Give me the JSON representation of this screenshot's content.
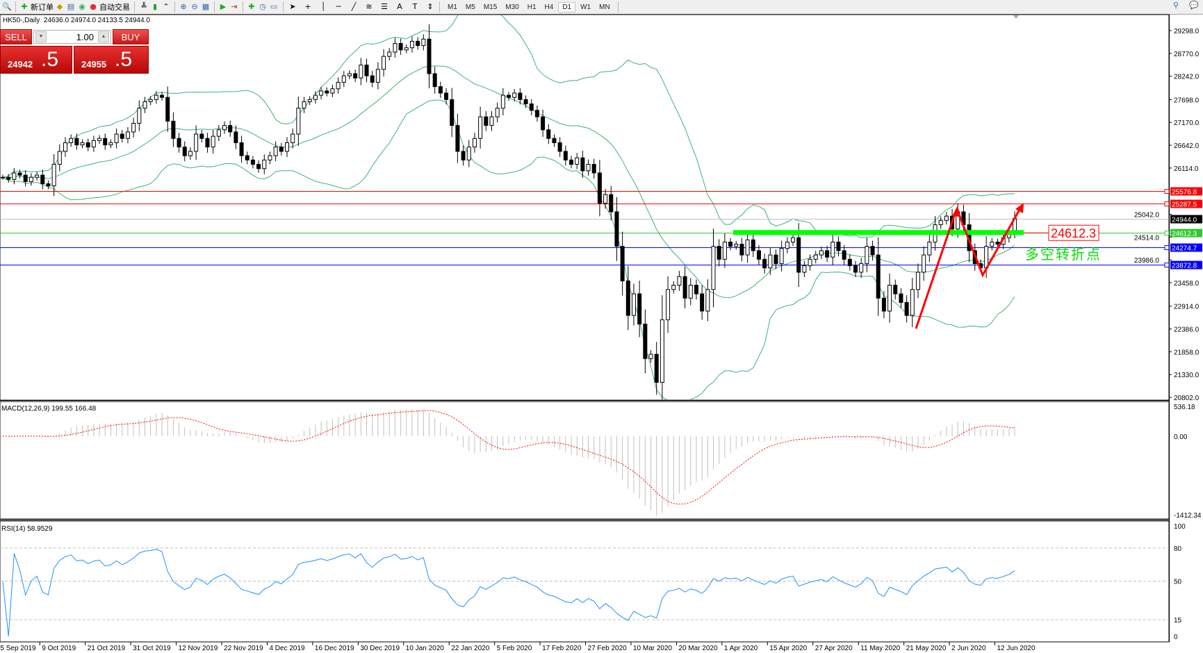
{
  "toolbar": {
    "new_order": "新订单",
    "auto_trading": "自动交易",
    "timeframes": [
      "M1",
      "M5",
      "M15",
      "M30",
      "H1",
      "H4",
      "D1",
      "W1",
      "MN"
    ],
    "active_timeframe": "D1",
    "icons": [
      "new-chart-icon",
      "zoom-icon",
      "new-order-icon",
      "metaeditor-icon",
      "navigator-icon",
      "signals-icon",
      "auto-trading-icon",
      "bar-chart-icon",
      "candlestick-icon",
      "line-chart-icon",
      "zoom-in-icon",
      "zoom-out-icon",
      "tile-windows-icon",
      "autoscroll-icon",
      "chart-shift-icon",
      "indicators-icon",
      "periods-icon",
      "templates-icon",
      "cursor-icon",
      "crosshair-icon",
      "vertical-line-icon",
      "horizontal-line-icon",
      "trendline-icon",
      "fibonacci-icon",
      "fibo-channel-icon",
      "text-icon",
      "text-label-icon",
      "arrows-icon",
      "search-icon",
      "chat-icon"
    ]
  },
  "chart": {
    "symbol_title": "HK50-,Daily",
    "ohlc": {
      "open": "24636.0",
      "high": "24974.0",
      "low": "24133.5",
      "close": "24944.0"
    },
    "price_range": [
      20802,
      29298
    ],
    "closes": [
      25900,
      25850,
      26000,
      25950,
      25800,
      25900,
      25950,
      25750,
      25700,
      26200,
      26500,
      26700,
      26800,
      26650,
      26700,
      26600,
      26750,
      26800,
      26650,
      26700,
      26900,
      26800,
      26950,
      27150,
      27500,
      27650,
      27700,
      27800,
      27750,
      27200,
      26800,
      26600,
      26400,
      26500,
      26900,
      26800,
      26600,
      26850,
      27000,
      27100,
      26950,
      26700,
      26400,
      26300,
      26200,
      26100,
      26300,
      26400,
      26600,
      26500,
      26700,
      26900,
      27500,
      27650,
      27700,
      27800,
      27900,
      27850,
      27950,
      28100,
      28250,
      28300,
      28200,
      28500,
      28250,
      28100,
      28400,
      28700,
      28800,
      29000,
      28850,
      28900,
      29050,
      28950,
      29100,
      28300,
      28000,
      27850,
      27700,
      27100,
      26500,
      26300,
      26600,
      26800,
      27300,
      27100,
      27300,
      27500,
      27800,
      27750,
      27850,
      27700,
      27600,
      27450,
      27300,
      27000,
      26800,
      26700,
      26500,
      26300,
      26200,
      26350,
      26050,
      26200,
      26000,
      25300,
      25500,
      25100,
      24300,
      23500,
      22700,
      23200,
      22500,
      21700,
      21800,
      21150,
      22600,
      23300,
      23400,
      23600,
      23100,
      23400,
      23200,
      22800,
      23300,
      24300,
      24000,
      24400,
      24300,
      24350,
      24100,
      24450,
      24200,
      24000,
      23800,
      24100,
      23900,
      24250,
      24400,
      24500,
      23700,
      23850,
      24000,
      24100,
      24200,
      24050,
      24400,
      24200,
      24000,
      23850,
      23700,
      23900,
      24300,
      24100,
      23100,
      22800,
      23400,
      23200,
      23000,
      22700,
      23300,
      23700,
      24100,
      24400,
      24800,
      24900,
      25000,
      24700,
      25100,
      24800,
      24200,
      23900,
      23800,
      24300,
      24400,
      24350,
      24500,
      24650,
      24944
    ],
    "price_ticks": [
      "29298.0",
      "28770.0",
      "28242.0",
      "27698.0",
      "27170.0",
      "26642.0",
      "26114.0",
      "25042.0",
      "24514.0",
      "23986.0",
      "23458.0",
      "22914.0",
      "22386.0",
      "21858.0",
      "21330.0",
      "20802.0"
    ],
    "date_labels": [
      "25 Sep 2019",
      "9 Oct 2019",
      "21 Oct 2019",
      "31 Oct 2019",
      "12 Nov 2019",
      "22 Nov 2019",
      "4 Dec 2019",
      "16 Dec 2019",
      "30 Dec 2019",
      "10 Jan 2020",
      "22 Jan 2020",
      "5 Feb 2020",
      "17 Feb 2020",
      "27 Feb 2020",
      "10 Mar 2020",
      "20 Mar 2020",
      "1 Apr 2020",
      "15 Apr 2020",
      "27 Apr 2020",
      "11 May 2020",
      "21 May 2020",
      "2 Jun 2020",
      "12 Jun 2020"
    ],
    "hlines": [
      {
        "price": "25576.8",
        "color": "#ff0000"
      },
      {
        "price": "25287.5",
        "color": "#ff0000"
      },
      {
        "price": "24944.0",
        "color": "#000000",
        "line": "#c0c0c0"
      },
      {
        "price": "24612.3",
        "color": "#32c832"
      },
      {
        "price": "24274.7",
        "color": "#0000ff"
      },
      {
        "price": "23872.8",
        "color": "#0000ff"
      }
    ],
    "annotation": {
      "label": "24612.3",
      "text": "多空转折点",
      "label_color": "#ff0000",
      "text_color": "#00e000",
      "zone_color": "#00ff00",
      "arrow_color": "#ff0000"
    },
    "bands_color": "#3cb371"
  },
  "trade": {
    "sell": "SELL",
    "buy": "BUY",
    "lot": "1.00",
    "bid_main": "24942",
    "bid_frac": ".5",
    "ask_main": "24955",
    "ask_frac": ".5"
  },
  "macd": {
    "label": "MACD(12,26,9) 199.55 166.48",
    "scale_max": "536.18",
    "zero": "0.00",
    "scale_min": "-1412.34",
    "signal_color": "#ff0000",
    "hist_color": "#c0c0c0"
  },
  "rsi": {
    "label": "RSI(14) 58.9529",
    "levels": [
      "100",
      "80",
      "50",
      "15",
      "0"
    ],
    "line_color": "#1e90ff"
  }
}
